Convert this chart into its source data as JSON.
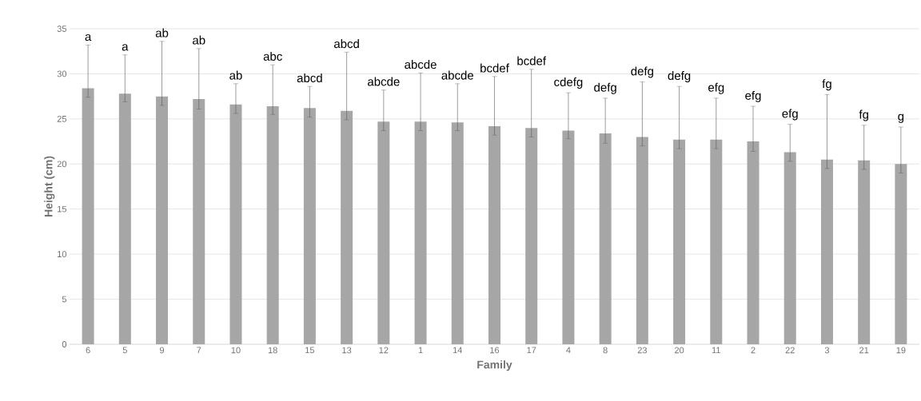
{
  "chart_data": {
    "type": "bar",
    "xlabel": "Family",
    "ylabel": "Height (cm)",
    "categories": [
      "6",
      "5",
      "9",
      "7",
      "10",
      "18",
      "15",
      "13",
      "12",
      "1",
      "14",
      "16",
      "17",
      "4",
      "8",
      "23",
      "20",
      "11",
      "2",
      "22",
      "3",
      "21",
      "19"
    ],
    "values": [
      28.4,
      27.8,
      27.5,
      27.2,
      26.6,
      26.4,
      26.2,
      25.9,
      24.7,
      24.7,
      24.6,
      24.2,
      24.0,
      23.7,
      23.4,
      23.0,
      22.7,
      22.7,
      22.5,
      21.3,
      20.5,
      20.4,
      20.0
    ],
    "errors": [
      [
        27.4,
        33.2
      ],
      [
        26.9,
        32.1
      ],
      [
        26.5,
        33.6
      ],
      [
        26.1,
        32.8
      ],
      [
        25.6,
        28.9
      ],
      [
        25.5,
        31.0
      ],
      [
        25.2,
        28.6
      ],
      [
        24.9,
        32.4
      ],
      [
        23.7,
        28.2
      ],
      [
        23.7,
        30.1
      ],
      [
        23.7,
        28.9
      ],
      [
        23.2,
        29.7
      ],
      [
        23.0,
        30.5
      ],
      [
        22.8,
        27.9
      ],
      [
        22.3,
        27.3
      ],
      [
        22.0,
        29.1
      ],
      [
        21.7,
        28.6
      ],
      [
        21.7,
        27.3
      ],
      [
        21.4,
        26.4
      ],
      [
        20.3,
        24.4
      ],
      [
        19.5,
        27.7
      ],
      [
        19.4,
        24.3
      ],
      [
        19.0,
        24.1
      ]
    ],
    "color": "#a6a6a6",
    "ylim": [
      0,
      35
    ],
    "yticks": [
      0,
      5,
      10,
      15,
      20,
      25,
      30,
      35
    ],
    "grid": "y",
    "annotations": [
      "a",
      "a",
      "ab",
      "ab",
      "ab",
      "abc",
      "abcd",
      "abcd",
      "abcde",
      "abcde",
      "abcde",
      "bcdef",
      "bcdef",
      "cdefg",
      "defg",
      "defg",
      "defg",
      "efg",
      "efg",
      "efg",
      "fg",
      "fg",
      "g"
    ]
  }
}
